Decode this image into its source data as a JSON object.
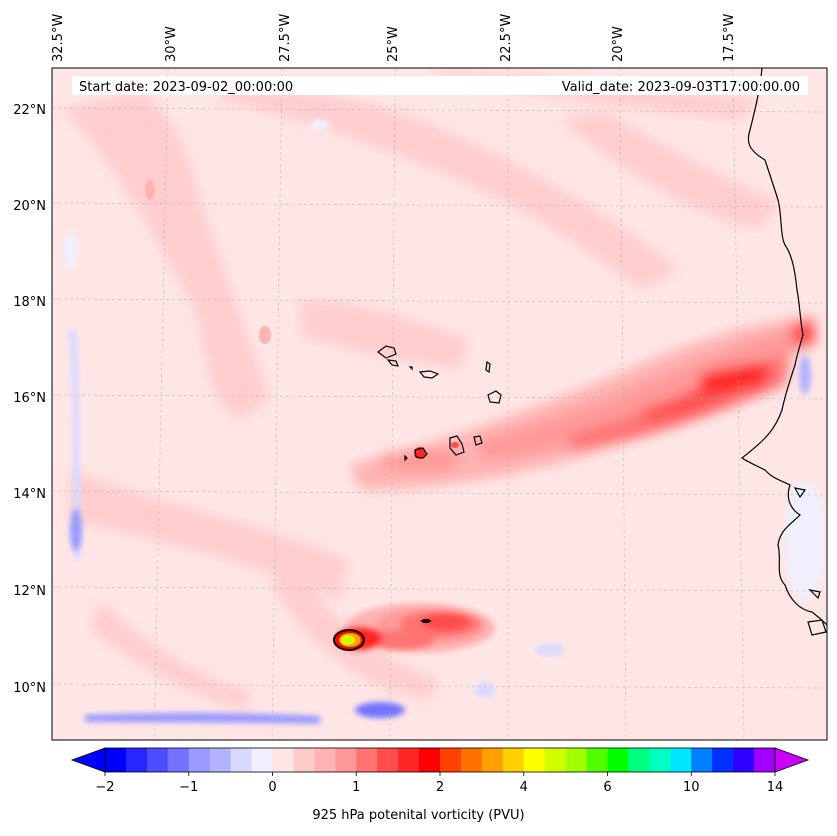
{
  "header": {
    "start_date": "Start date: 2023-09-02_00:00:00",
    "valid_date": "Valid_date: 2023-09-03T17:00:00.00"
  },
  "lon_labels": [
    "32.5°W",
    "30°W",
    "27.5°W",
    "25°W",
    "22.5°W",
    "20°W",
    "17.5°W"
  ],
  "lat_labels": [
    "22°N",
    "20°N",
    "18°N",
    "16°N",
    "14°N",
    "12°N",
    "10°N"
  ],
  "colorbar": {
    "title": "925 hPa potenital vorticity (PVU)",
    "tick_labels": [
      "−2",
      "−1",
      "0",
      "1",
      "2",
      "4",
      "6",
      "10",
      "14"
    ],
    "colors": [
      "#0000ff",
      "#2626ff",
      "#4d4dff",
      "#7373ff",
      "#9999ff",
      "#b3b3ff",
      "#d9d9ff",
      "#f0f0ff",
      "#ffe6e6",
      "#ffcccc",
      "#ffb3b3",
      "#ff9999",
      "#ff7373",
      "#ff4d4d",
      "#ff2626",
      "#ff0000",
      "#ff4000",
      "#ff7000",
      "#ffa000",
      "#ffd000",
      "#ffff00",
      "#d0ff00",
      "#a0ff00",
      "#50ff00",
      "#00ff00",
      "#00ff80",
      "#00ffc0",
      "#00e6ff",
      "#0080ff",
      "#0030ff",
      "#3000ff",
      "#a000ff"
    ],
    "under_color": "#0000ff",
    "over_color": "#cc00ff"
  }
}
